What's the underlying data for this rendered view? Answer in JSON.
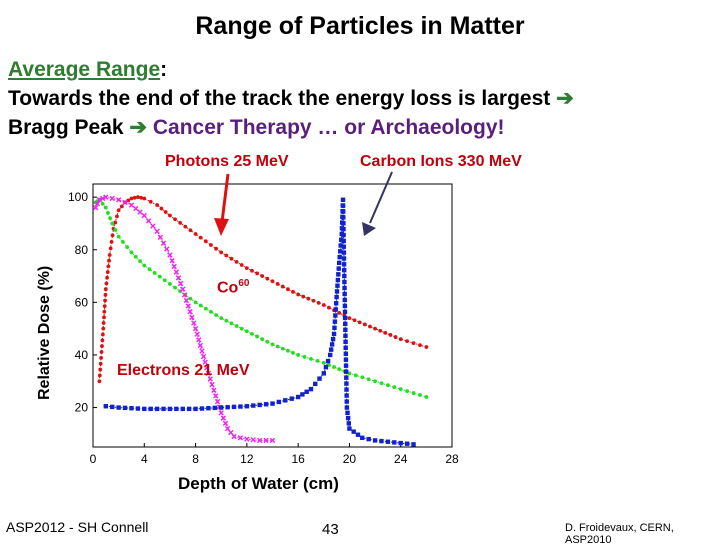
{
  "title": "Range of Particles in Matter",
  "intro": {
    "term": "Average Range",
    "colon": ":",
    "line2": "Towards the end of the track the energy loss is largest",
    "line3_a": "Bragg Peak",
    "line3_b": "Cancer Therapy … or Archaeology!"
  },
  "annotations": {
    "photons": "Photons 25 MeV",
    "carbon": "Carbon Ions 330 MeV",
    "co": "Co",
    "co_sup": "60",
    "electrons": "Electrons 21 MeV"
  },
  "footer": {
    "left": "ASP2012 - SH Connell",
    "page": "43",
    "right": "D. Froidevaux, CERN, ASP2010"
  },
  "colors": {
    "photons": "#dd1111",
    "co60": "#22dd22",
    "electrons": "#ee22ee",
    "carbon": "#1122cc",
    "arrow": "#2e7d32",
    "annotation": "#c0000a"
  },
  "chart_data": {
    "type": "line",
    "title": "",
    "xlabel": "Depth of Water (cm)",
    "ylabel": "Relative Dose (%)",
    "xlim": [
      0,
      28
    ],
    "ylim": [
      5,
      105
    ],
    "xticks": [
      "0",
      "4",
      "8",
      "12",
      "16",
      "20",
      "24",
      "28"
    ],
    "yticks": [
      "20",
      "40",
      "60",
      "80",
      "100"
    ],
    "series": [
      {
        "name": "Photons 25 MeV",
        "color": "#dd1111",
        "marker": "dot",
        "x": [
          0.5,
          0.8,
          1.0,
          1.3,
          1.6,
          2.0,
          2.5,
          3.0,
          3.5,
          4.0,
          5.0,
          6.0,
          8.0,
          10.0,
          12.0,
          14.0,
          16.0,
          18.0,
          20.0,
          22.0,
          24.0,
          26.0
        ],
        "y": [
          30,
          50,
          65,
          78,
          88,
          95,
          98,
          99.5,
          100,
          99.5,
          97,
          93,
          86,
          79,
          73,
          68,
          63,
          59,
          54,
          50,
          46,
          43
        ]
      },
      {
        "name": "Co60",
        "color": "#22dd22",
        "marker": "dot",
        "x": [
          0.2,
          0.5,
          1.0,
          1.5,
          2.0,
          3.0,
          4.0,
          6.0,
          8.0,
          10.0,
          12.0,
          14.0,
          16.0,
          18.0,
          20.0,
          22.0,
          24.0,
          26.0
        ],
        "y": [
          98,
          99,
          96,
          90,
          85,
          79,
          74,
          67,
          60,
          54,
          49,
          44,
          40,
          37,
          33,
          30,
          27,
          24
        ]
      },
      {
        "name": "Electrons 21 MeV",
        "color": "#ee22ee",
        "marker": "x",
        "x": [
          0.2,
          0.5,
          1.0,
          2.0,
          3.0,
          4.0,
          5.0,
          6.0,
          7.0,
          8.0,
          9.0,
          10.0,
          10.5,
          11.0,
          12.0,
          13.0,
          14.0
        ],
        "y": [
          96,
          99,
          100,
          99,
          97,
          93,
          87,
          78,
          65,
          50,
          33,
          18,
          12,
          9,
          8,
          7.5,
          7.5
        ]
      },
      {
        "name": "Carbon Ions 330 MeV",
        "color": "#1122cc",
        "marker": "square",
        "x": [
          1.0,
          2.0,
          4.0,
          6.0,
          8.0,
          10.0,
          12.0,
          14.0,
          16.0,
          17.0,
          18.0,
          18.5,
          18.8,
          19.0,
          19.2,
          19.4,
          19.5,
          19.6,
          19.8,
          20.0,
          21.0,
          22.0,
          23.0,
          24.0,
          25.0
        ],
        "y": [
          20.5,
          20,
          19.5,
          19.5,
          19.5,
          20,
          20.5,
          21.5,
          24,
          27,
          33,
          40,
          48,
          62,
          75,
          86,
          99,
          70,
          20,
          12,
          8.5,
          7.5,
          7,
          6.5,
          6
        ]
      }
    ]
  }
}
